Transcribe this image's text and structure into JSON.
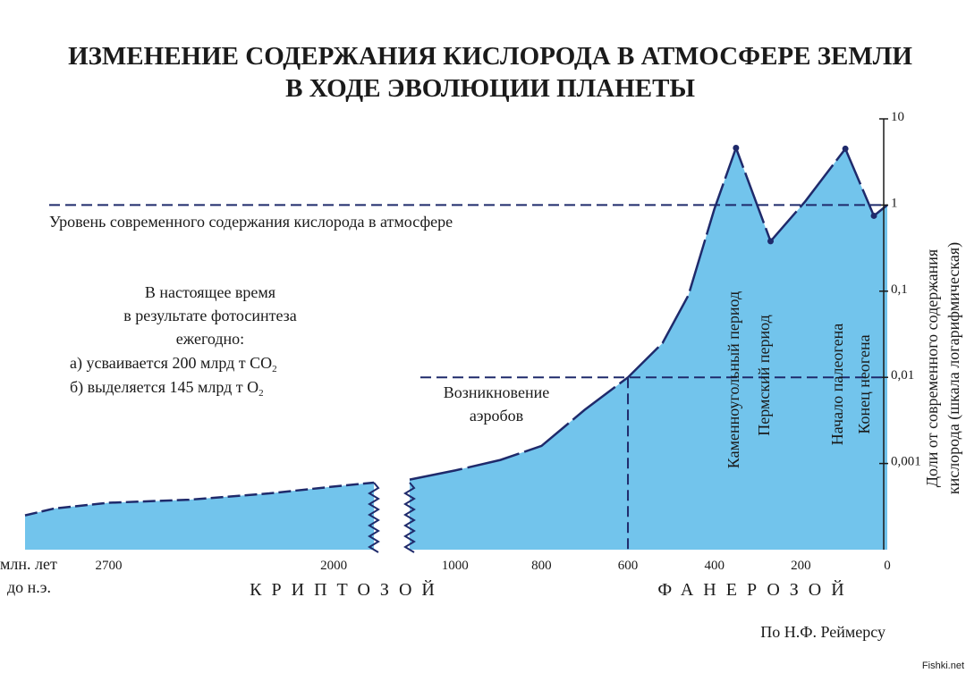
{
  "header": {
    "title": "ИЗМЕНЕНИЕ СОДЕРЖАНИЯ КИСЛОРОДА В АТМОСФЕРЕ ЗЕМЛИ",
    "subtitle": "В ХОДЕ ЭВОЛЮЦИИ ПЛАНЕТЫ"
  },
  "chart_data": [
    {
      "type": "area",
      "era": "КРИПТОЗОЙ",
      "color": "#72c4ec",
      "line_color": "#1f2a6b",
      "xlim": [
        2960,
        1875
      ],
      "xticks": [
        2700,
        2000
      ],
      "ylim": [
        0.0001,
        10
      ],
      "yscale": "log",
      "x": [
        2960,
        2870,
        2700,
        2450,
        2200,
        2000,
        1875
      ],
      "values": [
        0.00025,
        0.0003,
        0.00035,
        0.00038,
        0.00045,
        0.00054,
        0.0006
      ]
    },
    {
      "type": "area",
      "era": "ФАНЕРОЗОЙ",
      "color": "#72c4ec",
      "line_color": "#1f2a6b",
      "xlim": [
        1105,
        0
      ],
      "xticks": [
        1000,
        800,
        600,
        400,
        200,
        0
      ],
      "ylim": [
        0.0001,
        10
      ],
      "yscale": "log",
      "yticks": [
        10,
        1,
        {
          "value": 0.1,
          "label": "0,1"
        },
        {
          "value": 0.01,
          "label": "0,01"
        },
        {
          "value": 0.001,
          "label": "0,001"
        }
      ],
      "ylabel": [
        "Доли от современного содержания",
        "кислорода (шкала логарифмическая)"
      ],
      "x": [
        1105,
        1000,
        895,
        800,
        700,
        600,
        520,
        460,
        400,
        350,
        270,
        190,
        97,
        31,
        0
      ],
      "values": [
        0.00065,
        0.00083,
        0.0011,
        0.0016,
        0.0042,
        0.01,
        0.025,
        0.09,
        0.9,
        4.6,
        0.38,
        1.1,
        4.5,
        0.75,
        1
      ],
      "periods": [
        "Каменноугольный период",
        "Пермский период",
        "Начало палеогена",
        "Конец неогена"
      ]
    }
  ],
  "xlabel": [
    "млн. лет",
    "до н.э."
  ],
  "modern_level": "Уровень современного содержания кислорода в атмосфере",
  "aerobes": [
    "Возникновение",
    "аэробов"
  ],
  "info": {
    "lines": [
      "В настоящее время",
      "в результате фотосинтеза",
      "ежегодно:"
    ],
    "a": [
      "а) усваивается  200  млрд  т  СО",
      "2"
    ],
    "b": [
      "б) выделяется  145  млрд  т    О",
      "2"
    ]
  },
  "source": "По Н.Ф. Реймерсу",
  "watermark": "Fishki.net"
}
